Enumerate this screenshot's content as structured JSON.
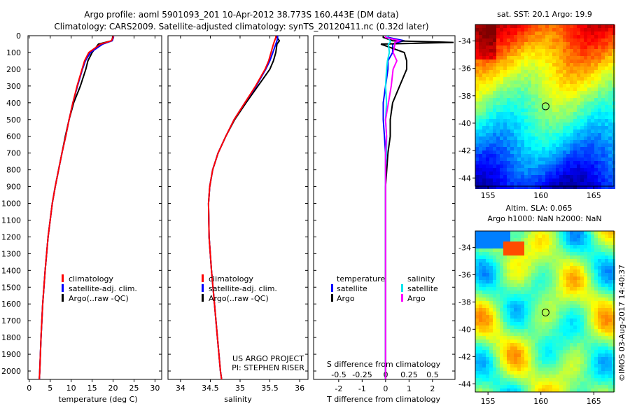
{
  "title_line1": "Argo profile: aoml 5901093_201 10-Apr-2012 38.773S 160.443E (DM data)",
  "title_line2": "Climatology: CARS2009. Satellite-adjusted climatology: synTS_20120411.nc (0.32d later)",
  "timestamp": "©IMOS 03-Aug-2017 14:40:37",
  "colors": {
    "climatology": "#ff0000",
    "satellite": "#0000ff",
    "argo": "#000000",
    "sal_satellite": "#00e5ee",
    "sal_argo": "#ff00ff"
  },
  "chart_data": [
    {
      "type": "line",
      "xlabel": "temperature (deg C)",
      "ylabel": "",
      "ylim": [
        2050,
        0
      ],
      "xlim": [
        -0.3,
        31.6
      ],
      "xticks": [
        "0",
        "5",
        "10",
        "15",
        "20",
        "25",
        "30"
      ],
      "xtick_values": [
        0,
        5,
        10,
        15,
        20,
        25,
        30
      ],
      "yticks": [
        0,
        100,
        200,
        300,
        400,
        500,
        600,
        700,
        800,
        900,
        1000,
        1100,
        1200,
        1300,
        1400,
        1500,
        1600,
        1700,
        1800,
        1900,
        2000
      ],
      "legend": [
        "climatology",
        "satellite-adj. clim.",
        "Argo(..raw -QC)"
      ],
      "depth": [
        0,
        10,
        30,
        50,
        100,
        150,
        200,
        300,
        400,
        500,
        600,
        700,
        800,
        900,
        1000,
        1200,
        1400,
        1600,
        1800,
        2000,
        2050
      ],
      "series": [
        {
          "name": "climatology",
          "values": [
            20,
            20,
            19.6,
            17,
            14.2,
            13.2,
            12.6,
            11.4,
            10.4,
            9.5,
            8.7,
            7.8,
            7.0,
            6.2,
            5.5,
            4.5,
            3.8,
            3.2,
            2.8,
            2.5,
            2.4
          ]
        },
        {
          "name": "satellite-adj. clim.",
          "values": [
            20.1,
            20.1,
            19.8,
            17.5,
            14.6,
            13.4,
            12.7,
            11.5,
            10.4,
            9.5,
            8.7,
            7.8,
            7.0,
            6.2,
            5.5,
            4.5,
            3.8,
            3.2,
            2.8,
            2.5,
            2.4
          ]
        },
        {
          "name": "Argo",
          "values": [
            19.9,
            19.9,
            19.7,
            16.5,
            15.0,
            14.0,
            13.5,
            12.2,
            10.6,
            9.5,
            8.6,
            7.8,
            7.0,
            6.2,
            5.5,
            4.5,
            3.8,
            3.2,
            2.8,
            2.5,
            2.4
          ]
        }
      ]
    },
    {
      "type": "line",
      "xlabel": "salinity",
      "xlim": [
        33.79,
        36.14
      ],
      "ylim": [
        2050,
        0
      ],
      "xticks": [
        "34",
        "34.5",
        "35",
        "35.5",
        "36"
      ],
      "xtick_values": [
        34,
        34.5,
        35,
        35.5,
        36
      ],
      "legend": [
        "climatology",
        "satellite-adj. clim.",
        "Argo(..raw -QC)"
      ],
      "annotation": [
        "US ARGO PROJECT",
        "PI: STEPHEN RISER"
      ],
      "depth": [
        0,
        10,
        30,
        50,
        100,
        150,
        200,
        300,
        400,
        500,
        600,
        700,
        800,
        900,
        1000,
        1200,
        1400,
        1600,
        1800,
        2000,
        2050
      ],
      "series": [
        {
          "name": "climatology",
          "values": [
            35.6,
            35.6,
            35.58,
            35.56,
            35.52,
            35.48,
            35.42,
            35.26,
            35.08,
            34.9,
            34.76,
            34.63,
            34.54,
            34.49,
            34.47,
            34.48,
            34.52,
            34.57,
            34.62,
            34.67,
            34.69
          ]
        },
        {
          "name": "satellite-adj. clim.",
          "values": [
            35.63,
            35.63,
            35.62,
            35.6,
            35.55,
            35.5,
            35.43,
            35.27,
            35.08,
            34.9,
            34.76,
            34.63,
            34.54,
            34.49,
            34.47,
            34.48,
            34.52,
            34.57,
            34.62,
            34.67,
            34.69
          ]
        },
        {
          "name": "Argo",
          "values": [
            35.62,
            35.62,
            35.66,
            35.62,
            35.6,
            35.56,
            35.5,
            35.3,
            35.1,
            34.91,
            34.76,
            34.63,
            34.54,
            34.49,
            34.47,
            34.48,
            34.52,
            34.57,
            34.62,
            34.67,
            34.69
          ]
        }
      ]
    },
    {
      "type": "line",
      "xlabel": "T difference from climatology",
      "xlabel2": "S difference from climatology",
      "xlim": [
        -3.07,
        2.96
      ],
      "ylim": [
        2050,
        0
      ],
      "xticks": [
        "-2",
        "-1",
        "0",
        "1",
        "2"
      ],
      "xtick_values": [
        -2,
        -1,
        0,
        1,
        2
      ],
      "xticks2": [
        "-0.5",
        "-0.25",
        "0",
        "0.25",
        "0.5"
      ],
      "xtick2_values": [
        -0.5,
        -0.25,
        0,
        0.25,
        0.5
      ],
      "legend": {
        "temperature_title": "temperature",
        "salinity_title": "salinity",
        "items": [
          "satellite",
          "Argo",
          "satellite",
          "Argo"
        ]
      },
      "depth": [
        0,
        10,
        30,
        40,
        50,
        100,
        150,
        200,
        300,
        400,
        500,
        600,
        700,
        800,
        900,
        1000,
        1500,
        2000,
        2050
      ],
      "series": [
        {
          "name": "T satellite",
          "values": [
            0.1,
            0.1,
            0.8,
            0.5,
            0.3,
            0.3,
            0.1,
            0.1,
            0.0,
            -0.1,
            -0.1,
            -0.05,
            0.0,
            0.0,
            0.0,
            0.0,
            0.0,
            0.0,
            0.0
          ]
        },
        {
          "name": "T Argo",
          "values": [
            -0.1,
            -0.1,
            0.3,
            2.9,
            -0.2,
            0.8,
            0.9,
            0.9,
            0.6,
            0.3,
            0.2,
            0.2,
            0.1,
            0.05,
            0.0,
            0.0,
            0.0,
            0.0,
            0.0
          ]
        },
        {
          "name": "S satellite",
          "values": [
            0.02,
            0.02,
            0.05,
            0.05,
            0.03,
            0.04,
            0.02,
            0.01,
            0.0,
            0.01,
            0.0,
            0.01,
            0.01,
            0.0,
            0.0,
            0.0,
            0.0,
            0.0,
            0.0
          ]
        },
        {
          "name": "S Argo",
          "values": [
            0.0,
            0.0,
            0.15,
            0.1,
            0.1,
            0.08,
            0.12,
            0.08,
            0.06,
            0.03,
            0.0,
            0.01,
            0.0,
            0.0,
            0.0,
            0.0,
            0.0,
            0.0,
            0.0
          ]
        }
      ]
    },
    {
      "type": "heatmap",
      "title": "sat. SST: 20.1 Argo: 19.9",
      "lon_ticks": [
        "155",
        "160",
        "165"
      ],
      "lat_ticks": [
        "-34",
        "-36",
        "-38",
        "-40",
        "-42",
        "-44"
      ],
      "marker": {
        "lon": 160.443,
        "lat": -38.773
      }
    },
    {
      "type": "heatmap",
      "title": "Altim. SLA: 0.065",
      "subtitle": "Argo h1000: NaN h2000: NaN",
      "lon_ticks": [
        "155",
        "160",
        "165"
      ],
      "lat_ticks": [
        "-34",
        "-36",
        "-38",
        "-40",
        "-42",
        "-44"
      ],
      "marker": {
        "lon": 160.443,
        "lat": -38.773
      }
    }
  ]
}
